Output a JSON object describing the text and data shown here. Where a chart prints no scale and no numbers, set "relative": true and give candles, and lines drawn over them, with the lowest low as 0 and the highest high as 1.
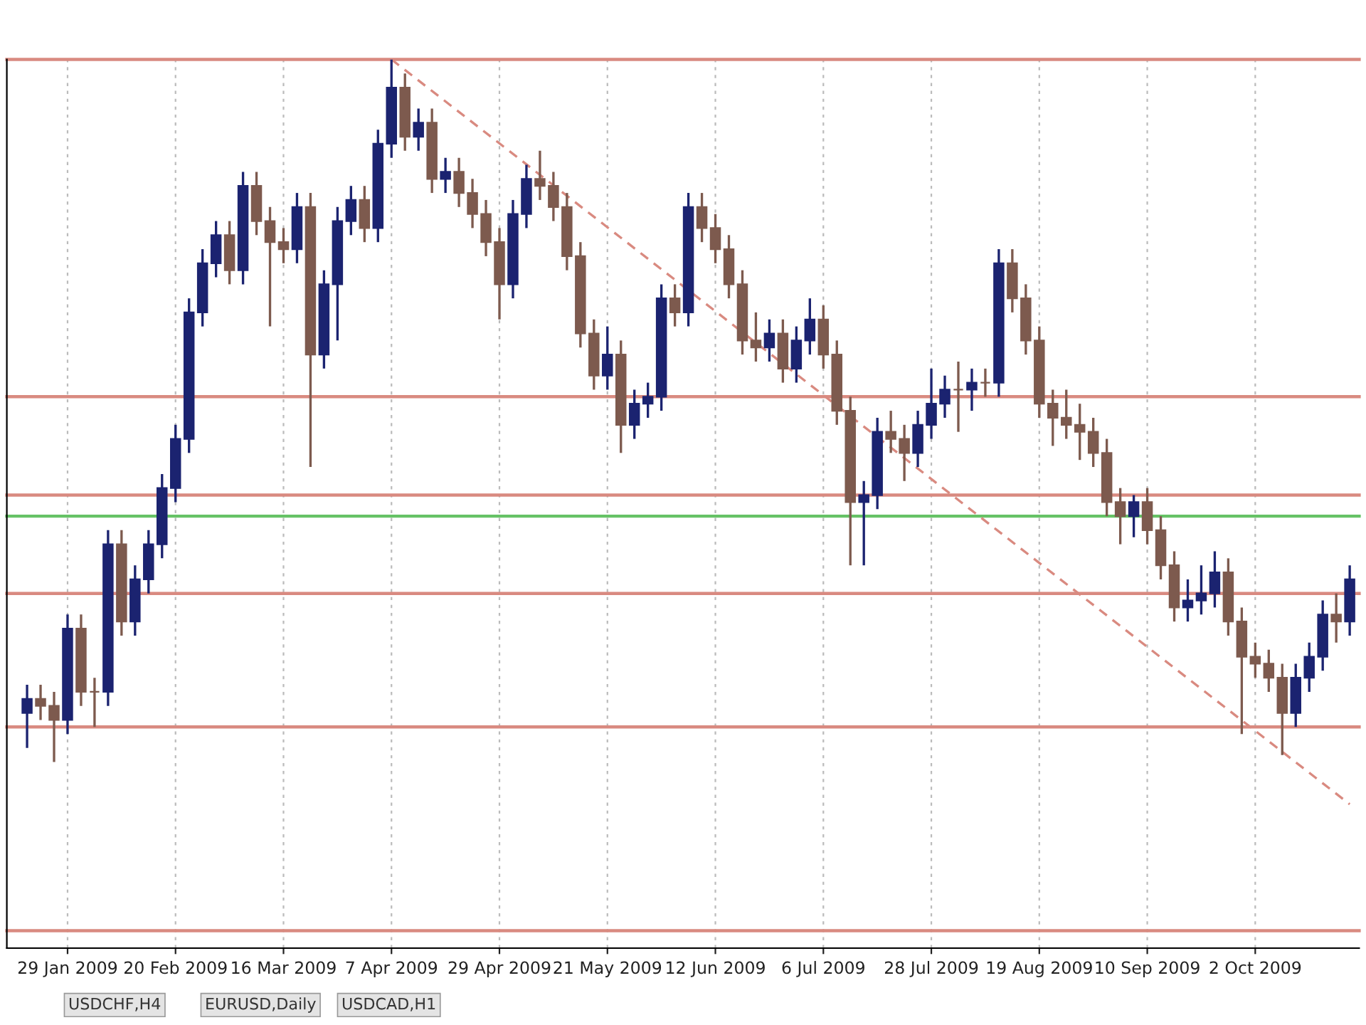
{
  "chart_data": {
    "type": "candlestick",
    "relative": true,
    "grid": "x",
    "categories": [
      null,
      null,
      null,
      "29 Jan 2009",
      null,
      null,
      null,
      null,
      null,
      null,
      null,
      "20 Feb 2009",
      null,
      null,
      null,
      null,
      null,
      null,
      null,
      "16 Mar 2009",
      null,
      null,
      null,
      null,
      null,
      null,
      null,
      "7 Apr 2009",
      null,
      null,
      null,
      null,
      null,
      null,
      null,
      "29 Apr 2009",
      null,
      null,
      null,
      null,
      null,
      null,
      null,
      "21 May 2009",
      null,
      null,
      null,
      null,
      null,
      null,
      null,
      "12 Jun 2009",
      null,
      null,
      null,
      null,
      null,
      null,
      null,
      "6 Jul 2009",
      null,
      null,
      null,
      null,
      null,
      null,
      null,
      "28 Jul 2009",
      null,
      null,
      null,
      null,
      null,
      null,
      null,
      "19 Aug 2009",
      null,
      null,
      null,
      null,
      null,
      null,
      null,
      "10 Sep 2009",
      null,
      null,
      null,
      null,
      null,
      null,
      null,
      "2 Oct 2009",
      null,
      null,
      null,
      null,
      null,
      null,
      null
    ],
    "colors": [
      "#1b2370",
      "#7d5a4e",
      "#7d5a4e",
      "#1b2370",
      "#7d5a4e",
      "#7d5a4e",
      "#1b2370",
      "#7d5a4e",
      "#1b2370",
      "#1b2370",
      "#1b2370",
      "#1b2370",
      "#1b2370",
      "#1b2370",
      "#1b2370",
      "#7d5a4e",
      "#1b2370",
      "#7d5a4e",
      "#7d5a4e",
      "#7d5a4e",
      "#1b2370",
      "#7d5a4e",
      "#1b2370",
      "#1b2370",
      "#1b2370",
      "#7d5a4e",
      "#1b2370",
      "#1b2370",
      "#7d5a4e",
      "#1b2370",
      "#7d5a4e",
      "#1b2370",
      "#7d5a4e",
      "#7d5a4e",
      "#7d5a4e",
      "#7d5a4e",
      "#1b2370",
      "#1b2370",
      "#7d5a4e",
      "#7d5a4e",
      "#7d5a4e",
      "#7d5a4e",
      "#7d5a4e",
      "#1b2370",
      "#7d5a4e",
      "#1b2370",
      "#1b2370",
      "#1b2370",
      "#7d5a4e",
      "#1b2370",
      "#7d5a4e",
      "#7d5a4e",
      "#7d5a4e",
      "#7d5a4e",
      "#7d5a4e",
      "#1b2370",
      "#7d5a4e",
      "#1b2370",
      "#1b2370",
      "#7d5a4e",
      "#7d5a4e",
      "#7d5a4e",
      "#1b2370",
      "#1b2370",
      "#7d5a4e",
      "#7d5a4e",
      "#1b2370",
      "#1b2370",
      "#1b2370",
      "#7d5a4e",
      "#1b2370",
      "#7d5a4e",
      "#1b2370",
      "#7d5a4e",
      "#7d5a4e",
      "#7d5a4e",
      "#7d5a4e",
      "#7d5a4e",
      "#7d5a4e",
      "#7d5a4e",
      "#7d5a4e",
      "#7d5a4e",
      "#1b2370",
      "#7d5a4e",
      "#7d5a4e",
      "#7d5a4e",
      "#1b2370",
      "#1b2370",
      "#1b2370",
      "#7d5a4e",
      "#7d5a4e",
      "#7d5a4e",
      "#7d5a4e",
      "#7d5a4e",
      "#1b2370",
      "#1b2370",
      "#1b2370",
      "#7d5a4e",
      "#1b2370"
    ],
    "ohlc": [
      [
        0.07,
        0.11,
        0.02,
        0.09
      ],
      [
        0.09,
        0.11,
        0.06,
        0.08
      ],
      [
        0.08,
        0.1,
        0.0,
        0.06
      ],
      [
        0.06,
        0.21,
        0.04,
        0.19
      ],
      [
        0.19,
        0.21,
        0.08,
        0.1
      ],
      [
        0.1,
        0.12,
        0.05,
        0.1
      ],
      [
        0.1,
        0.33,
        0.08,
        0.31
      ],
      [
        0.31,
        0.33,
        0.18,
        0.2
      ],
      [
        0.2,
        0.28,
        0.18,
        0.26
      ],
      [
        0.26,
        0.33,
        0.24,
        0.31
      ],
      [
        0.31,
        0.41,
        0.29,
        0.39
      ],
      [
        0.39,
        0.48,
        0.37,
        0.46
      ],
      [
        0.46,
        0.66,
        0.44,
        0.64
      ],
      [
        0.64,
        0.73,
        0.62,
        0.71
      ],
      [
        0.71,
        0.77,
        0.69,
        0.75
      ],
      [
        0.75,
        0.77,
        0.68,
        0.7
      ],
      [
        0.7,
        0.84,
        0.68,
        0.82
      ],
      [
        0.82,
        0.84,
        0.75,
        0.77
      ],
      [
        0.77,
        0.79,
        0.62,
        0.74
      ],
      [
        0.74,
        0.76,
        0.71,
        0.73
      ],
      [
        0.73,
        0.81,
        0.71,
        0.79
      ],
      [
        0.79,
        0.81,
        0.42,
        0.58
      ],
      [
        0.58,
        0.7,
        0.56,
        0.68
      ],
      [
        0.68,
        0.79,
        0.6,
        0.77
      ],
      [
        0.77,
        0.82,
        0.75,
        0.8
      ],
      [
        0.8,
        0.82,
        0.74,
        0.76
      ],
      [
        0.76,
        0.9,
        0.74,
        0.88
      ],
      [
        0.88,
        1.0,
        0.86,
        0.96
      ],
      [
        0.96,
        0.98,
        0.87,
        0.89
      ],
      [
        0.89,
        0.93,
        0.87,
        0.91
      ],
      [
        0.91,
        0.93,
        0.81,
        0.83
      ],
      [
        0.83,
        0.86,
        0.81,
        0.84
      ],
      [
        0.84,
        0.86,
        0.79,
        0.81
      ],
      [
        0.81,
        0.83,
        0.76,
        0.78
      ],
      [
        0.78,
        0.8,
        0.72,
        0.74
      ],
      [
        0.74,
        0.76,
        0.63,
        0.68
      ],
      [
        0.68,
        0.8,
        0.66,
        0.78
      ],
      [
        0.78,
        0.85,
        0.76,
        0.83
      ],
      [
        0.83,
        0.87,
        0.8,
        0.82
      ],
      [
        0.82,
        0.84,
        0.77,
        0.79
      ],
      [
        0.79,
        0.81,
        0.7,
        0.72
      ],
      [
        0.72,
        0.74,
        0.59,
        0.61
      ],
      [
        0.61,
        0.63,
        0.53,
        0.55
      ],
      [
        0.55,
        0.62,
        0.53,
        0.58
      ],
      [
        0.58,
        0.6,
        0.44,
        0.48
      ],
      [
        0.48,
        0.53,
        0.46,
        0.51
      ],
      [
        0.51,
        0.54,
        0.49,
        0.52
      ],
      [
        0.52,
        0.68,
        0.5,
        0.66
      ],
      [
        0.66,
        0.68,
        0.62,
        0.64
      ],
      [
        0.64,
        0.81,
        0.62,
        0.79
      ],
      [
        0.79,
        0.81,
        0.74,
        0.76
      ],
      [
        0.76,
        0.78,
        0.71,
        0.73
      ],
      [
        0.73,
        0.75,
        0.66,
        0.68
      ],
      [
        0.68,
        0.7,
        0.58,
        0.6
      ],
      [
        0.6,
        0.64,
        0.57,
        0.59
      ],
      [
        0.59,
        0.63,
        0.57,
        0.61
      ],
      [
        0.61,
        0.63,
        0.54,
        0.56
      ],
      [
        0.56,
        0.62,
        0.54,
        0.6
      ],
      [
        0.6,
        0.66,
        0.58,
        0.63
      ],
      [
        0.63,
        0.65,
        0.56,
        0.58
      ],
      [
        0.58,
        0.6,
        0.48,
        0.5
      ],
      [
        0.5,
        0.52,
        0.28,
        0.37
      ],
      [
        0.37,
        0.4,
        0.28,
        0.38
      ],
      [
        0.38,
        0.49,
        0.36,
        0.47
      ],
      [
        0.47,
        0.5,
        0.44,
        0.46
      ],
      [
        0.46,
        0.48,
        0.4,
        0.44
      ],
      [
        0.44,
        0.5,
        0.42,
        0.48
      ],
      [
        0.48,
        0.56,
        0.46,
        0.51
      ],
      [
        0.51,
        0.55,
        0.49,
        0.53
      ],
      [
        0.53,
        0.57,
        0.47,
        0.53
      ],
      [
        0.53,
        0.56,
        0.5,
        0.54
      ],
      [
        0.54,
        0.56,
        0.52,
        0.54
      ],
      [
        0.54,
        0.73,
        0.52,
        0.71
      ],
      [
        0.71,
        0.73,
        0.64,
        0.66
      ],
      [
        0.66,
        0.68,
        0.58,
        0.6
      ],
      [
        0.6,
        0.62,
        0.49,
        0.51
      ],
      [
        0.51,
        0.53,
        0.45,
        0.49
      ],
      [
        0.49,
        0.53,
        0.46,
        0.48
      ],
      [
        0.48,
        0.51,
        0.43,
        0.47
      ],
      [
        0.47,
        0.49,
        0.42,
        0.44
      ],
      [
        0.44,
        0.46,
        0.35,
        0.37
      ],
      [
        0.37,
        0.39,
        0.31,
        0.35
      ],
      [
        0.35,
        0.38,
        0.32,
        0.37
      ],
      [
        0.37,
        0.39,
        0.31,
        0.33
      ],
      [
        0.33,
        0.35,
        0.26,
        0.28
      ],
      [
        0.28,
        0.3,
        0.2,
        0.22
      ],
      [
        0.22,
        0.26,
        0.2,
        0.23
      ],
      [
        0.23,
        0.28,
        0.21,
        0.24
      ],
      [
        0.24,
        0.3,
        0.22,
        0.27
      ],
      [
        0.27,
        0.29,
        0.18,
        0.2
      ],
      [
        0.2,
        0.22,
        0.04,
        0.15
      ],
      [
        0.15,
        0.17,
        0.12,
        0.14
      ],
      [
        0.14,
        0.16,
        0.1,
        0.12
      ],
      [
        0.12,
        0.14,
        0.01,
        0.07
      ],
      [
        0.07,
        0.14,
        0.05,
        0.12
      ],
      [
        0.12,
        0.17,
        0.1,
        0.15
      ],
      [
        0.15,
        0.23,
        0.13,
        0.21
      ],
      [
        0.21,
        0.24,
        0.17,
        0.2
      ],
      [
        0.2,
        0.28,
        0.18,
        0.26
      ]
    ],
    "series": [
      {
        "type": "line",
        "color": "#d98a80",
        "line_style": "dashed",
        "values": [
          null,
          null,
          null,
          null,
          null,
          null,
          null,
          null,
          null,
          null,
          null,
          null,
          null,
          null,
          null,
          null,
          null,
          null,
          null,
          null,
          null,
          null,
          null,
          null,
          null,
          null,
          null,
          1.0,
          null,
          null,
          null,
          null,
          null,
          null,
          null,
          null,
          null,
          null,
          null,
          null,
          null,
          null,
          null,
          null,
          null,
          null,
          null,
          null,
          null,
          null,
          null,
          null,
          null,
          null,
          null,
          null,
          null,
          null,
          null,
          null,
          null,
          null,
          null,
          null,
          null,
          null,
          null,
          null,
          null,
          null,
          null,
          null,
          null,
          null,
          null,
          null,
          null,
          null,
          null,
          null,
          null,
          null,
          null,
          null,
          null,
          null,
          null,
          null,
          null,
          null,
          null,
          null,
          null,
          null,
          null,
          null,
          null,
          null,
          -0.06
        ]
      }
    ],
    "ref_lines": [
      {
        "axis": "y",
        "value": 1.0,
        "color": "#d98a80"
      },
      {
        "axis": "y",
        "value": 0.52,
        "color": "#d98a80"
      },
      {
        "axis": "y",
        "value": 0.38,
        "color": "#d98a80"
      },
      {
        "axis": "y",
        "value": 0.24,
        "color": "#d98a80"
      },
      {
        "axis": "y",
        "value": 0.05,
        "color": "#d98a80"
      },
      {
        "axis": "y",
        "value": -0.24,
        "color": "#d98a80"
      },
      {
        "axis": "y",
        "value": 0.35,
        "color": "#66c266"
      }
    ],
    "annotations": [
      "USDCHF,H4",
      "EURUSD,Daily",
      "USDCAD,H1"
    ]
  }
}
